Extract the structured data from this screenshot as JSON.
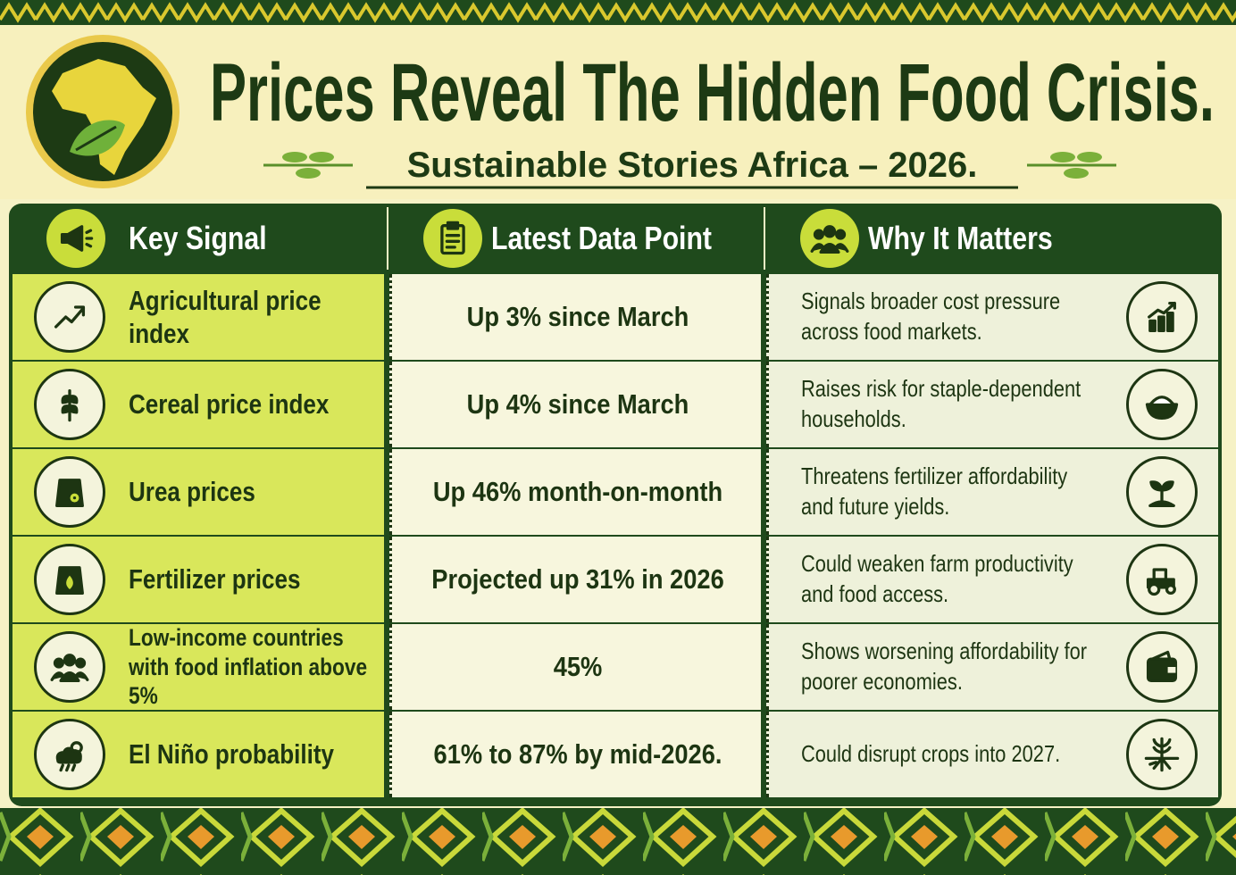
{
  "header": {
    "title": "Prices Reveal The Hidden Food Crisis.",
    "subtitle": "Sustainable Stories Africa – 2026."
  },
  "table": {
    "columns": [
      "Key Signal",
      "Latest Data Point",
      "Why It Matters"
    ],
    "rows": [
      [
        "Agricultural price index",
        "Up 3% since March",
        "Signals broader cost pressure across food markets."
      ],
      [
        "Cereal price index",
        "Up 4% since March",
        "Raises risk for staple-dependent households."
      ],
      [
        "Urea prices",
        "Up 46% month-on-month",
        "Threatens fertilizer affordability and future yields."
      ],
      [
        "Fertilizer prices",
        "Projected up 31% in 2026",
        "Could weaken farm productivity and food access."
      ],
      [
        "Low-income countries with food inflation above 5%",
        "45%",
        "Shows worsening affordability for poorer economies."
      ],
      [
        "El Niño probability",
        "61% to 87% by mid-2026.",
        "Could disrupt crops into 2027."
      ]
    ]
  }
}
